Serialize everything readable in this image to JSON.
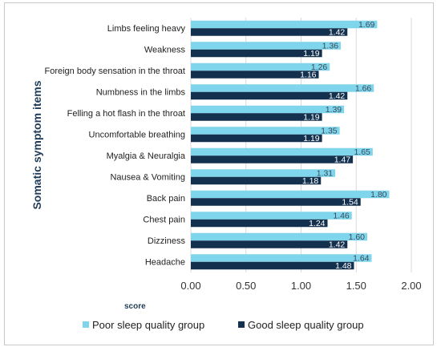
{
  "chart_data": {
    "type": "bar",
    "orientation": "horizontal",
    "categories": [
      "Limbs feeling heavy",
      "Weakness",
      "Foreign body sensation in the throat",
      "Numbness in the limbs",
      "Felling a hot flash in the throat",
      "Uncomfortable breathing",
      "Myalgia & Neuralgia",
      "Nausea & Vomiting",
      "Back pain",
      "Chest pain",
      "Dizziness",
      "Headache"
    ],
    "series": [
      {
        "name": "Poor sleep quality group",
        "color": "#7fd6ec",
        "values": [
          1.69,
          1.36,
          1.26,
          1.66,
          1.39,
          1.35,
          1.65,
          1.31,
          1.8,
          1.46,
          1.6,
          1.64
        ],
        "labels": [
          "1.69",
          "1.36",
          "1.26",
          "1.66",
          "1.39",
          "1.35",
          "1.65",
          "1.31",
          "1.80",
          "1.46",
          "1.60",
          "1.64"
        ]
      },
      {
        "name": "Good sleep quality group",
        "color": "#13304e",
        "values": [
          1.42,
          1.19,
          1.16,
          1.42,
          1.19,
          1.19,
          1.47,
          1.18,
          1.54,
          1.24,
          1.42,
          1.48
        ],
        "labels": [
          "1.42",
          "1.19",
          "1.16",
          "1.42",
          "1.19",
          "1.19",
          "1.47",
          "1.18",
          "1.54",
          "1.24",
          "1.42",
          "1.48"
        ]
      }
    ],
    "xlim": [
      0,
      2
    ],
    "xticks": [
      "0.00",
      "0.50",
      "1.00",
      "1.50",
      "2.00"
    ],
    "xlabel": "score",
    "ylabel": "Somatic symptom items",
    "grid": "vertical",
    "legend": "bottom"
  }
}
